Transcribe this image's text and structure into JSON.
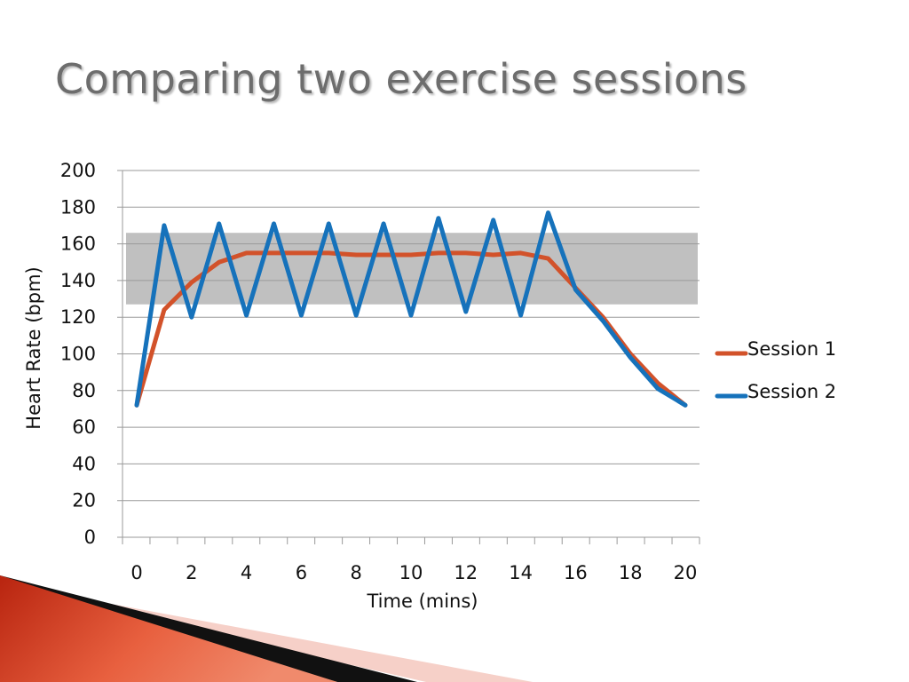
{
  "slide": {
    "title": "Comparing two exercise sessions"
  },
  "colors": {
    "session1": "#d2522a",
    "session2": "#1672bb",
    "target_band": "#c0c0c0",
    "grid": "#9a9a9a",
    "title": "#6d6d6d"
  },
  "chart_data": {
    "type": "line",
    "title": "",
    "xlabel": "Time (mins)",
    "ylabel": "Heart Rate (bpm)",
    "x": [
      0,
      1,
      2,
      3,
      4,
      5,
      6,
      7,
      8,
      9,
      10,
      11,
      12,
      13,
      14,
      15,
      16,
      17,
      18,
      19,
      20
    ],
    "xticks": [
      "0",
      "2",
      "4",
      "6",
      "8",
      "10",
      "12",
      "14",
      "16",
      "18",
      "20"
    ],
    "yticks": [
      "0",
      "20",
      "40",
      "60",
      "80",
      "100",
      "120",
      "140",
      "160",
      "180",
      "200"
    ],
    "ylim": [
      0,
      200
    ],
    "xlim": [
      0,
      20
    ],
    "grid": true,
    "legend": "right",
    "band": {
      "from": 127,
      "to": 166
    },
    "series": [
      {
        "name": "Session 1",
        "color": "#d2522a",
        "values": [
          72,
          124,
          139,
          150,
          155,
          155,
          155,
          155,
          154,
          154,
          154,
          155,
          155,
          154,
          155,
          152,
          136,
          120,
          100,
          84,
          72
        ]
      },
      {
        "name": "Session 2",
        "color": "#1672bb",
        "values": [
          72,
          170,
          120,
          171,
          121,
          171,
          121,
          171,
          121,
          171,
          121,
          174,
          123,
          173,
          121,
          177,
          135,
          118,
          98,
          81,
          72
        ]
      }
    ]
  }
}
